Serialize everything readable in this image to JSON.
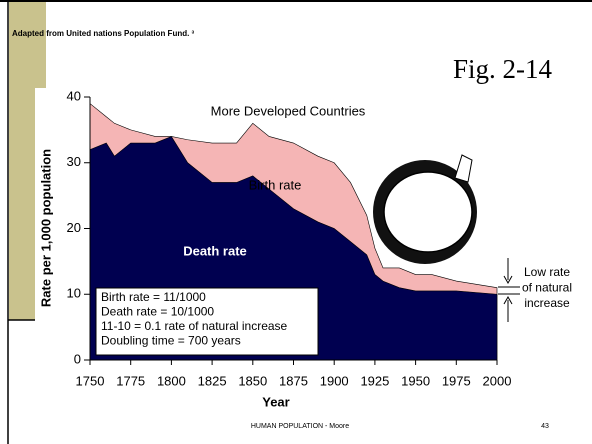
{
  "slide": {
    "source": "Adapted from United nations Population Fund. ³",
    "figure": "Fig. 2-14",
    "footer": "HUMAN POPULATION - Moore",
    "page_number": "43"
  },
  "chart_data": {
    "type": "area",
    "title": "More Developed Countries",
    "y_label": "Rate per 1,000 population",
    "x_label": "Year",
    "x": [
      1750,
      1760,
      1765,
      1775,
      1790,
      1800,
      1810,
      1825,
      1840,
      1850,
      1860,
      1875,
      1890,
      1900,
      1910,
      1920,
      1925,
      1930,
      1940,
      1950,
      1960,
      1975,
      2000
    ],
    "series": [
      {
        "name": "Birth rate",
        "color": "#f5b5b5",
        "values": [
          39,
          37,
          36,
          35,
          34,
          34,
          33.5,
          33,
          33,
          36,
          34,
          33,
          31,
          30,
          27,
          22,
          17,
          14,
          14,
          13,
          13,
          12,
          11
        ]
      },
      {
        "name": "Death rate",
        "color": "#000050",
        "values": [
          32,
          33,
          31,
          33,
          33,
          34,
          30,
          27,
          27,
          28,
          26,
          23,
          21,
          20,
          18,
          16,
          13,
          12,
          11,
          10.5,
          10.5,
          10.5,
          10
        ]
      }
    ],
    "xlim": [
      1750,
      2000
    ],
    "xticks": [
      1750,
      1775,
      1800,
      1825,
      1850,
      1875,
      1900,
      1925,
      1950,
      1975,
      2000
    ],
    "ylim": [
      0,
      40
    ],
    "yticks": [
      0,
      10,
      20,
      30,
      40
    ],
    "box_text": [
      "Birth rate = 11/1000",
      "Death rate = 10/1000",
      "11-10 = 0.1 rate of natural increase",
      "Doubling time = 700 years"
    ],
    "side_note": [
      "Low rate",
      "of natural",
      "increase"
    ]
  }
}
